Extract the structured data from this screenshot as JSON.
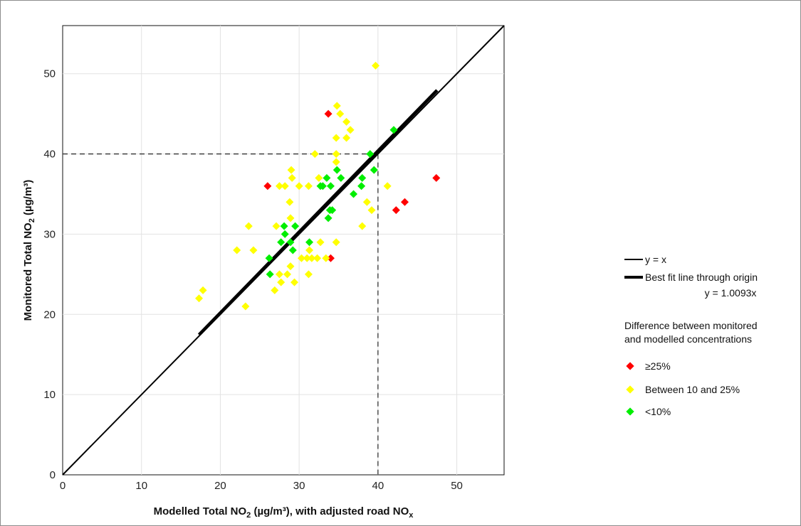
{
  "chart_data": {
    "type": "scatter",
    "xlabel": {
      "pre": "Modelled Total NO",
      "sub": "2",
      "post": " (µg/m³), with adjusted road NO",
      "sub2": "x"
    },
    "ylabel": {
      "pre": "Monitored Total NO",
      "sub": "2",
      "post": " (µg/m³)"
    },
    "xlim": [
      0,
      56
    ],
    "ylim": [
      0,
      56
    ],
    "xticks": [
      "0",
      "10",
      "20",
      "30",
      "40",
      "50"
    ],
    "yticks": [
      "0",
      "10",
      "20",
      "30",
      "40",
      "50"
    ],
    "grid": true,
    "objective_value": 40,
    "lines": {
      "identity": {
        "label": "y = x",
        "slope": 1.0,
        "range": [
          0,
          56
        ]
      },
      "best_fit": {
        "label": "Best fit line through origin",
        "equation": "y = 1.0093x",
        "slope": 1.0093,
        "range": [
          17.3,
          47.5
        ]
      }
    },
    "legend_heading": [
      "Difference between monitored",
      "and modelled concentrations"
    ],
    "series": [
      {
        "name": "≥25%",
        "color": "#ff0000",
        "points": [
          [
            33.7,
            45
          ],
          [
            26.0,
            36
          ],
          [
            34.0,
            27
          ],
          [
            47.4,
            37
          ],
          [
            43.4,
            34
          ],
          [
            42.3,
            33
          ]
        ]
      },
      {
        "name": "Between 10 and 25%",
        "color": "#ffff00",
        "points": [
          [
            39.7,
            51
          ],
          [
            34.8,
            46
          ],
          [
            35.2,
            45
          ],
          [
            36.0,
            44
          ],
          [
            36.5,
            43
          ],
          [
            34.7,
            42
          ],
          [
            36.0,
            42
          ],
          [
            32.0,
            40
          ],
          [
            34.7,
            40
          ],
          [
            34.7,
            39
          ],
          [
            29.0,
            38
          ],
          [
            29.1,
            37
          ],
          [
            32.5,
            37
          ],
          [
            30.0,
            36
          ],
          [
            27.5,
            36
          ],
          [
            28.2,
            36
          ],
          [
            31.2,
            36
          ],
          [
            41.2,
            36
          ],
          [
            28.8,
            34
          ],
          [
            38.6,
            34
          ],
          [
            39.2,
            33
          ],
          [
            28.9,
            32
          ],
          [
            23.6,
            31
          ],
          [
            27.1,
            31
          ],
          [
            38.0,
            31
          ],
          [
            22.1,
            28
          ],
          [
            24.2,
            28
          ],
          [
            31.3,
            28
          ],
          [
            34.7,
            29
          ],
          [
            32.7,
            29
          ],
          [
            30.3,
            27
          ],
          [
            31.0,
            27
          ],
          [
            31.6,
            27
          ],
          [
            32.3,
            27
          ],
          [
            33.4,
            27
          ],
          [
            28.9,
            26
          ],
          [
            27.5,
            25
          ],
          [
            28.5,
            25
          ],
          [
            31.2,
            25
          ],
          [
            27.7,
            24
          ],
          [
            29.4,
            24
          ],
          [
            26.9,
            23
          ],
          [
            17.8,
            23
          ],
          [
            17.3,
            22
          ],
          [
            23.2,
            21
          ]
        ]
      },
      {
        "name": "<10%",
        "color": "#00ee00",
        "points": [
          [
            42.0,
            43
          ],
          [
            39.0,
            40
          ],
          [
            39.5,
            38
          ],
          [
            34.8,
            38
          ],
          [
            35.3,
            37
          ],
          [
            33.5,
            37
          ],
          [
            38.0,
            37
          ],
          [
            33.0,
            36
          ],
          [
            32.7,
            36
          ],
          [
            34.0,
            36
          ],
          [
            37.9,
            36
          ],
          [
            36.9,
            35
          ],
          [
            34.2,
            33
          ],
          [
            33.9,
            33
          ],
          [
            33.7,
            32
          ],
          [
            28.1,
            31
          ],
          [
            29.5,
            31
          ],
          [
            28.2,
            30
          ],
          [
            27.7,
            29
          ],
          [
            28.9,
            29
          ],
          [
            31.3,
            29
          ],
          [
            26.2,
            27
          ],
          [
            29.2,
            28
          ],
          [
            26.3,
            25
          ]
        ]
      }
    ]
  }
}
